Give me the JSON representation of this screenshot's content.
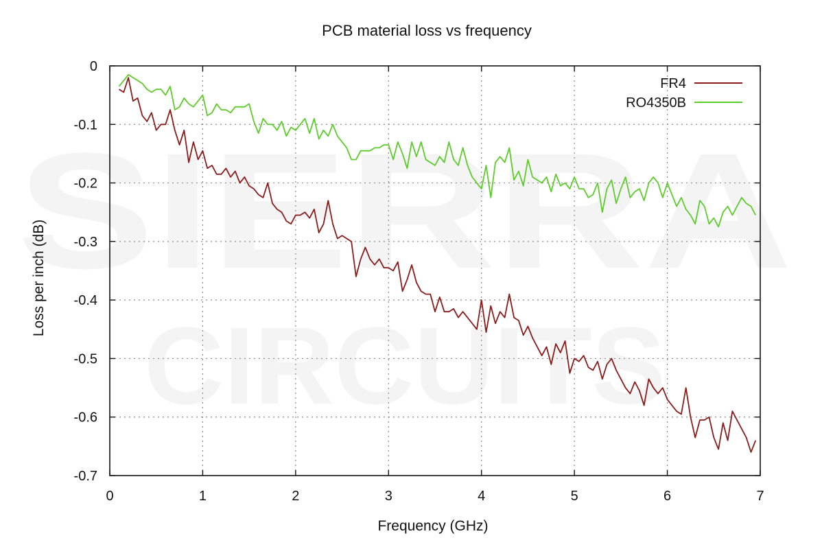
{
  "watermark": {
    "line1": "SIERRA",
    "line2": "CIRCUITS"
  },
  "chart_data": {
    "type": "line",
    "title": "PCB material loss vs frequency",
    "xlabel": "Frequency (GHz)",
    "ylabel": "Loss per inch (dB)",
    "xlim": [
      0,
      7
    ],
    "ylim": [
      -0.7,
      0
    ],
    "xticks": [
      "0",
      "1",
      "2",
      "3",
      "4",
      "5",
      "6",
      "7"
    ],
    "yticks": [
      "0",
      "-0.1",
      "-0.2",
      "-0.3",
      "-0.4",
      "-0.5",
      "-0.6",
      "-0.7"
    ],
    "grid": true,
    "legend_position": "top-right",
    "series": [
      {
        "name": "FR4",
        "color": "#8b1a1a",
        "points": [
          [
            0.1,
            -0.04
          ],
          [
            0.15,
            -0.045
          ],
          [
            0.2,
            -0.02
          ],
          [
            0.25,
            -0.06
          ],
          [
            0.3,
            -0.055
          ],
          [
            0.35,
            -0.085
          ],
          [
            0.4,
            -0.095
          ],
          [
            0.45,
            -0.08
          ],
          [
            0.5,
            -0.11
          ],
          [
            0.55,
            -0.1
          ],
          [
            0.6,
            -0.1
          ],
          [
            0.65,
            -0.075
          ],
          [
            0.7,
            -0.11
          ],
          [
            0.75,
            -0.135
          ],
          [
            0.8,
            -0.11
          ],
          [
            0.85,
            -0.165
          ],
          [
            0.9,
            -0.13
          ],
          [
            0.95,
            -0.16
          ],
          [
            1.0,
            -0.145
          ],
          [
            1.05,
            -0.175
          ],
          [
            1.1,
            -0.17
          ],
          [
            1.15,
            -0.185
          ],
          [
            1.2,
            -0.185
          ],
          [
            1.25,
            -0.175
          ],
          [
            1.3,
            -0.19
          ],
          [
            1.35,
            -0.18
          ],
          [
            1.4,
            -0.2
          ],
          [
            1.45,
            -0.19
          ],
          [
            1.5,
            -0.205
          ],
          [
            1.55,
            -0.21
          ],
          [
            1.6,
            -0.22
          ],
          [
            1.65,
            -0.225
          ],
          [
            1.7,
            -0.2
          ],
          [
            1.75,
            -0.235
          ],
          [
            1.8,
            -0.245
          ],
          [
            1.85,
            -0.25
          ],
          [
            1.9,
            -0.265
          ],
          [
            1.95,
            -0.27
          ],
          [
            2.0,
            -0.255
          ],
          [
            2.05,
            -0.255
          ],
          [
            2.1,
            -0.25
          ],
          [
            2.15,
            -0.26
          ],
          [
            2.2,
            -0.245
          ],
          [
            2.25,
            -0.285
          ],
          [
            2.3,
            -0.27
          ],
          [
            2.35,
            -0.23
          ],
          [
            2.4,
            -0.27
          ],
          [
            2.45,
            -0.295
          ],
          [
            2.5,
            -0.29
          ],
          [
            2.55,
            -0.295
          ],
          [
            2.6,
            -0.3
          ],
          [
            2.65,
            -0.36
          ],
          [
            2.7,
            -0.33
          ],
          [
            2.75,
            -0.31
          ],
          [
            2.8,
            -0.33
          ],
          [
            2.85,
            -0.34
          ],
          [
            2.9,
            -0.33
          ],
          [
            2.95,
            -0.345
          ],
          [
            3.0,
            -0.345
          ],
          [
            3.05,
            -0.35
          ],
          [
            3.1,
            -0.335
          ],
          [
            3.15,
            -0.385
          ],
          [
            3.2,
            -0.365
          ],
          [
            3.25,
            -0.34
          ],
          [
            3.3,
            -0.37
          ],
          [
            3.35,
            -0.385
          ],
          [
            3.4,
            -0.39
          ],
          [
            3.45,
            -0.39
          ],
          [
            3.5,
            -0.42
          ],
          [
            3.55,
            -0.395
          ],
          [
            3.6,
            -0.42
          ],
          [
            3.65,
            -0.42
          ],
          [
            3.7,
            -0.415
          ],
          [
            3.75,
            -0.43
          ],
          [
            3.8,
            -0.42
          ],
          [
            3.85,
            -0.43
          ],
          [
            3.9,
            -0.44
          ],
          [
            3.95,
            -0.45
          ],
          [
            4.0,
            -0.4
          ],
          [
            4.05,
            -0.455
          ],
          [
            4.1,
            -0.41
          ],
          [
            4.15,
            -0.44
          ],
          [
            4.2,
            -0.42
          ],
          [
            4.25,
            -0.43
          ],
          [
            4.3,
            -0.39
          ],
          [
            4.35,
            -0.43
          ],
          [
            4.4,
            -0.435
          ],
          [
            4.45,
            -0.46
          ],
          [
            4.5,
            -0.445
          ],
          [
            4.55,
            -0.465
          ],
          [
            4.6,
            -0.48
          ],
          [
            4.65,
            -0.495
          ],
          [
            4.7,
            -0.48
          ],
          [
            4.75,
            -0.51
          ],
          [
            4.8,
            -0.475
          ],
          [
            4.85,
            -0.49
          ],
          [
            4.9,
            -0.47
          ],
          [
            4.95,
            -0.525
          ],
          [
            5.0,
            -0.5
          ],
          [
            5.05,
            -0.505
          ],
          [
            5.1,
            -0.495
          ],
          [
            5.15,
            -0.515
          ],
          [
            5.2,
            -0.52
          ],
          [
            5.25,
            -0.505
          ],
          [
            5.3,
            -0.535
          ],
          [
            5.35,
            -0.51
          ],
          [
            5.4,
            -0.5
          ],
          [
            5.45,
            -0.52
          ],
          [
            5.5,
            -0.535
          ],
          [
            5.55,
            -0.55
          ],
          [
            5.6,
            -0.56
          ],
          [
            5.65,
            -0.54
          ],
          [
            5.7,
            -0.555
          ],
          [
            5.75,
            -0.58
          ],
          [
            5.8,
            -0.535
          ],
          [
            5.85,
            -0.55
          ],
          [
            5.9,
            -0.56
          ],
          [
            5.95,
            -0.55
          ],
          [
            6.0,
            -0.57
          ],
          [
            6.05,
            -0.58
          ],
          [
            6.1,
            -0.59
          ],
          [
            6.15,
            -0.595
          ],
          [
            6.2,
            -0.55
          ],
          [
            6.25,
            -0.6
          ],
          [
            6.3,
            -0.635
          ],
          [
            6.35,
            -0.605
          ],
          [
            6.4,
            -0.605
          ],
          [
            6.45,
            -0.6
          ],
          [
            6.5,
            -0.635
          ],
          [
            6.55,
            -0.655
          ],
          [
            6.6,
            -0.61
          ],
          [
            6.65,
            -0.64
          ],
          [
            6.7,
            -0.59
          ],
          [
            6.75,
            -0.605
          ],
          [
            6.8,
            -0.62
          ],
          [
            6.85,
            -0.635
          ],
          [
            6.9,
            -0.66
          ],
          [
            6.95,
            -0.64
          ]
        ]
      },
      {
        "name": "RO4350B",
        "color": "#5ccc2a",
        "points": [
          [
            0.1,
            -0.035
          ],
          [
            0.15,
            -0.025
          ],
          [
            0.2,
            -0.015
          ],
          [
            0.25,
            -0.02
          ],
          [
            0.3,
            -0.025
          ],
          [
            0.35,
            -0.03
          ],
          [
            0.4,
            -0.04
          ],
          [
            0.45,
            -0.045
          ],
          [
            0.5,
            -0.04
          ],
          [
            0.55,
            -0.04
          ],
          [
            0.6,
            -0.05
          ],
          [
            0.65,
            -0.035
          ],
          [
            0.7,
            -0.075
          ],
          [
            0.75,
            -0.07
          ],
          [
            0.8,
            -0.055
          ],
          [
            0.85,
            -0.065
          ],
          [
            0.9,
            -0.07
          ],
          [
            0.95,
            -0.06
          ],
          [
            1.0,
            -0.05
          ],
          [
            1.05,
            -0.085
          ],
          [
            1.1,
            -0.08
          ],
          [
            1.15,
            -0.065
          ],
          [
            1.2,
            -0.075
          ],
          [
            1.25,
            -0.075
          ],
          [
            1.3,
            -0.08
          ],
          [
            1.35,
            -0.07
          ],
          [
            1.4,
            -0.07
          ],
          [
            1.45,
            -0.07
          ],
          [
            1.5,
            -0.065
          ],
          [
            1.55,
            -0.095
          ],
          [
            1.6,
            -0.115
          ],
          [
            1.65,
            -0.09
          ],
          [
            1.7,
            -0.1
          ],
          [
            1.75,
            -0.1
          ],
          [
            1.8,
            -0.11
          ],
          [
            1.85,
            -0.095
          ],
          [
            1.9,
            -0.12
          ],
          [
            1.95,
            -0.105
          ],
          [
            2.0,
            -0.11
          ],
          [
            2.05,
            -0.1
          ],
          [
            2.1,
            -0.09
          ],
          [
            2.15,
            -0.115
          ],
          [
            2.2,
            -0.09
          ],
          [
            2.25,
            -0.125
          ],
          [
            2.3,
            -0.11
          ],
          [
            2.35,
            -0.12
          ],
          [
            2.4,
            -0.1
          ],
          [
            2.45,
            -0.12
          ],
          [
            2.5,
            -0.13
          ],
          [
            2.55,
            -0.14
          ],
          [
            2.6,
            -0.16
          ],
          [
            2.65,
            -0.16
          ],
          [
            2.7,
            -0.145
          ],
          [
            2.75,
            -0.145
          ],
          [
            2.8,
            -0.145
          ],
          [
            2.85,
            -0.14
          ],
          [
            2.9,
            -0.14
          ],
          [
            2.95,
            -0.135
          ],
          [
            3.0,
            -0.135
          ],
          [
            3.05,
            -0.16
          ],
          [
            3.1,
            -0.13
          ],
          [
            3.15,
            -0.15
          ],
          [
            3.2,
            -0.175
          ],
          [
            3.25,
            -0.13
          ],
          [
            3.3,
            -0.155
          ],
          [
            3.35,
            -0.13
          ],
          [
            3.4,
            -0.16
          ],
          [
            3.45,
            -0.165
          ],
          [
            3.5,
            -0.17
          ],
          [
            3.55,
            -0.155
          ],
          [
            3.6,
            -0.165
          ],
          [
            3.65,
            -0.13
          ],
          [
            3.7,
            -0.16
          ],
          [
            3.75,
            -0.17
          ],
          [
            3.8,
            -0.14
          ],
          [
            3.85,
            -0.17
          ],
          [
            3.9,
            -0.19
          ],
          [
            3.95,
            -0.2
          ],
          [
            4.0,
            -0.21
          ],
          [
            4.05,
            -0.17
          ],
          [
            4.1,
            -0.225
          ],
          [
            4.15,
            -0.165
          ],
          [
            4.2,
            -0.155
          ],
          [
            4.25,
            -0.165
          ],
          [
            4.3,
            -0.14
          ],
          [
            4.35,
            -0.195
          ],
          [
            4.4,
            -0.18
          ],
          [
            4.45,
            -0.205
          ],
          [
            4.5,
            -0.16
          ],
          [
            4.55,
            -0.19
          ],
          [
            4.6,
            -0.195
          ],
          [
            4.65,
            -0.2
          ],
          [
            4.7,
            -0.19
          ],
          [
            4.75,
            -0.215
          ],
          [
            4.8,
            -0.185
          ],
          [
            4.85,
            -0.205
          ],
          [
            4.9,
            -0.2
          ],
          [
            4.95,
            -0.21
          ],
          [
            5.0,
            -0.19
          ],
          [
            5.05,
            -0.21
          ],
          [
            5.1,
            -0.21
          ],
          [
            5.15,
            -0.225
          ],
          [
            5.2,
            -0.22
          ],
          [
            5.25,
            -0.2
          ],
          [
            5.3,
            -0.25
          ],
          [
            5.35,
            -0.21
          ],
          [
            5.4,
            -0.195
          ],
          [
            5.45,
            -0.235
          ],
          [
            5.5,
            -0.21
          ],
          [
            5.55,
            -0.19
          ],
          [
            5.6,
            -0.225
          ],
          [
            5.65,
            -0.215
          ],
          [
            5.7,
            -0.21
          ],
          [
            5.75,
            -0.23
          ],
          [
            5.8,
            -0.2
          ],
          [
            5.85,
            -0.19
          ],
          [
            5.9,
            -0.2
          ],
          [
            5.95,
            -0.225
          ],
          [
            6.0,
            -0.2
          ],
          [
            6.05,
            -0.22
          ],
          [
            6.1,
            -0.24
          ],
          [
            6.15,
            -0.225
          ],
          [
            6.2,
            -0.245
          ],
          [
            6.25,
            -0.255
          ],
          [
            6.3,
            -0.27
          ],
          [
            6.35,
            -0.23
          ],
          [
            6.4,
            -0.24
          ],
          [
            6.45,
            -0.27
          ],
          [
            6.5,
            -0.26
          ],
          [
            6.55,
            -0.275
          ],
          [
            6.6,
            -0.25
          ],
          [
            6.65,
            -0.24
          ],
          [
            6.7,
            -0.255
          ],
          [
            6.75,
            -0.24
          ],
          [
            6.8,
            -0.225
          ],
          [
            6.85,
            -0.235
          ],
          [
            6.9,
            -0.24
          ],
          [
            6.95,
            -0.255
          ]
        ]
      }
    ]
  }
}
